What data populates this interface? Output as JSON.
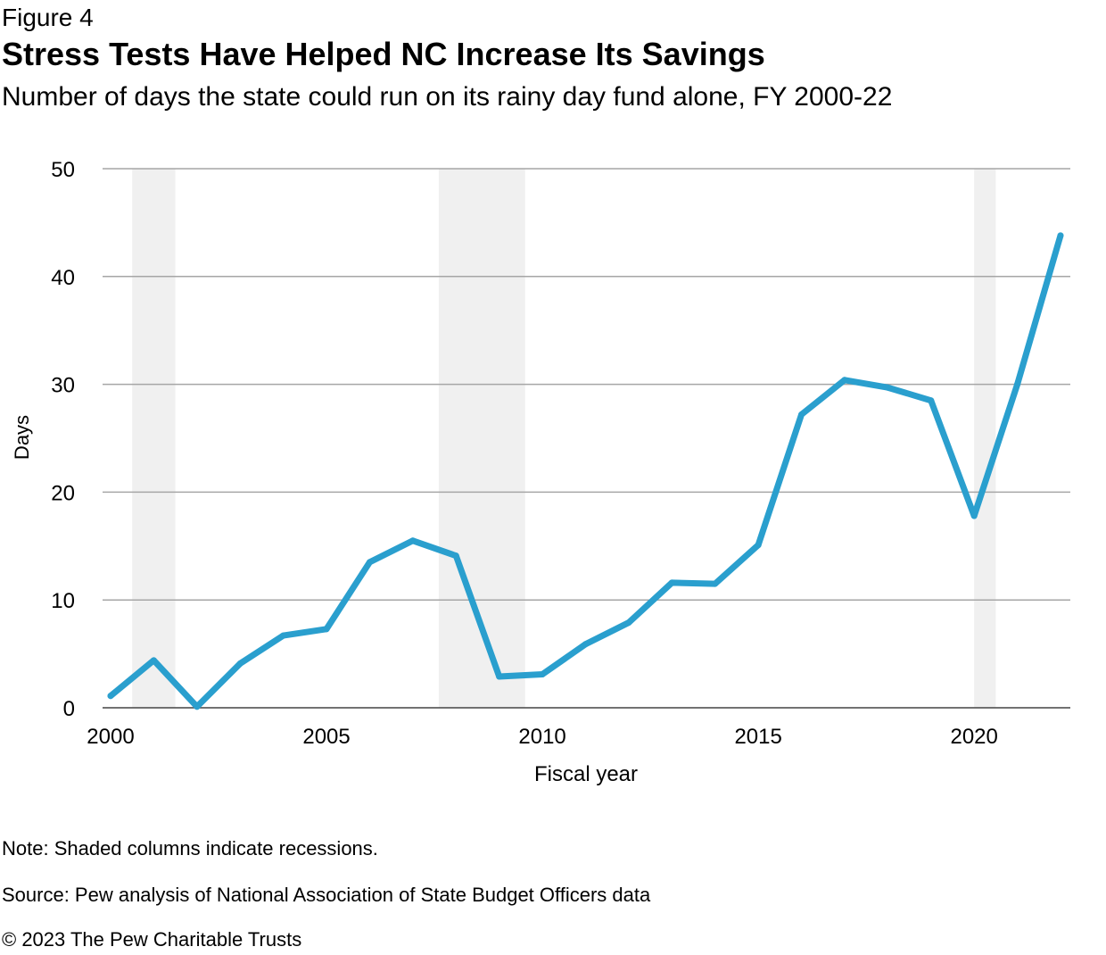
{
  "figure_label": "Figure 4",
  "title": "Stress Tests Have Helped NC Increase Its Savings",
  "subtitle": "Number of days the state could run on its rainy day fund alone, FY 2000-22",
  "note": "Note: Shaded columns indicate recessions.",
  "source": "Source: Pew analysis of National Association of State Budget Officers data",
  "copyright": "© 2023 The Pew Charitable Trusts",
  "chart_data": {
    "type": "line",
    "xlabel": "Fiscal year",
    "ylabel": "Days",
    "xlim": [
      2000,
      2022
    ],
    "ylim": [
      0,
      50
    ],
    "x_ticks": [
      2000,
      2005,
      2010,
      2015,
      2020
    ],
    "x_tick_labels": [
      "2000",
      "2005",
      "2010",
      "2015",
      "2020"
    ],
    "y_ticks": [
      0,
      10,
      20,
      30,
      40,
      50
    ],
    "y_tick_labels": [
      "0",
      "10",
      "20",
      "30",
      "40",
      "50"
    ],
    "grid": "horizontal",
    "line_color": "#2a9fce",
    "shade_color": "#f0f0f0",
    "recessions": [
      [
        2000.5,
        2001.5
      ],
      [
        2007.6,
        2009.6
      ],
      [
        2020.0,
        2020.5
      ]
    ],
    "series": [
      {
        "x": [
          2000,
          2001,
          2002,
          2003,
          2004,
          2005,
          2006,
          2007,
          2008,
          2009,
          2010,
          2011,
          2012,
          2013,
          2014,
          2015,
          2016,
          2017,
          2018,
          2019,
          2020,
          2021,
          2022
        ],
        "values": [
          1.1,
          4.4,
          0.1,
          4.1,
          6.7,
          7.3,
          13.5,
          15.5,
          14.1,
          2.9,
          3.1,
          5.9,
          7.9,
          11.6,
          11.5,
          15.1,
          27.2,
          30.4,
          29.7,
          28.5,
          17.8,
          30.0,
          43.8
        ]
      }
    ]
  }
}
